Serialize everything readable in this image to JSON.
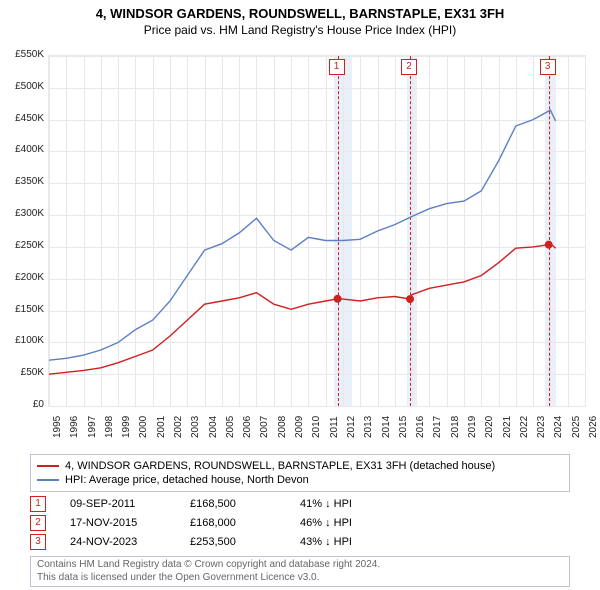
{
  "title": "4, WINDSOR GARDENS, ROUNDSWELL, BARNSTAPLE, EX31 3FH",
  "subtitle": "Price paid vs. HM Land Registry's House Price Index (HPI)",
  "chart": {
    "type": "line",
    "x_min": 1995,
    "x_max": 2026,
    "y_min": 0,
    "y_max": 550000,
    "ytick_step": 50000,
    "yticks": [
      "£0",
      "£50K",
      "£100K",
      "£150K",
      "£200K",
      "£250K",
      "£300K",
      "£350K",
      "£400K",
      "£450K",
      "£500K",
      "£550K"
    ],
    "xticks": [
      1995,
      1996,
      1997,
      1998,
      1999,
      2000,
      2001,
      2002,
      2003,
      2004,
      2005,
      2006,
      2007,
      2008,
      2009,
      2010,
      2011,
      2012,
      2013,
      2014,
      2015,
      2016,
      2017,
      2018,
      2019,
      2020,
      2021,
      2022,
      2023,
      2024,
      2025,
      2026
    ],
    "grid_color": "#e8e8ec",
    "background_color": "#ffffff",
    "shaded_bands": [
      {
        "from": 2011.5,
        "to": 2012.5
      },
      {
        "from": 2015.7,
        "to": 2016.3
      },
      {
        "from": 2023.7,
        "to": 2024.3
      }
    ],
    "series": [
      {
        "name": "price_paid",
        "color": "#d02020",
        "label": "4, WINDSOR GARDENS, ROUNDSWELL, BARNSTAPLE, EX31 3FH (detached house)",
        "points": [
          [
            1995,
            50000
          ],
          [
            1996,
            53000
          ],
          [
            1997,
            56000
          ],
          [
            1998,
            60000
          ],
          [
            1999,
            68000
          ],
          [
            2000,
            78000
          ],
          [
            2001,
            88000
          ],
          [
            2002,
            110000
          ],
          [
            2003,
            135000
          ],
          [
            2004,
            160000
          ],
          [
            2005,
            165000
          ],
          [
            2006,
            170000
          ],
          [
            2007,
            178000
          ],
          [
            2008,
            160000
          ],
          [
            2009,
            152000
          ],
          [
            2010,
            160000
          ],
          [
            2011,
            165000
          ],
          [
            2011.69,
            168500
          ],
          [
            2012,
            168000
          ],
          [
            2013,
            165000
          ],
          [
            2014,
            170000
          ],
          [
            2015,
            172000
          ],
          [
            2015.88,
            168000
          ],
          [
            2016,
            175000
          ],
          [
            2017,
            185000
          ],
          [
            2018,
            190000
          ],
          [
            2019,
            195000
          ],
          [
            2020,
            205000
          ],
          [
            2021,
            225000
          ],
          [
            2022,
            248000
          ],
          [
            2023,
            250000
          ],
          [
            2023.9,
            253500
          ],
          [
            2024,
            255000
          ],
          [
            2024.3,
            248000
          ]
        ]
      },
      {
        "name": "hpi",
        "color": "#5d7fc4",
        "label": "HPI: Average price, detached house, North Devon",
        "points": [
          [
            1995,
            72000
          ],
          [
            1996,
            75000
          ],
          [
            1997,
            80000
          ],
          [
            1998,
            88000
          ],
          [
            1999,
            100000
          ],
          [
            2000,
            120000
          ],
          [
            2001,
            135000
          ],
          [
            2002,
            165000
          ],
          [
            2003,
            205000
          ],
          [
            2004,
            245000
          ],
          [
            2005,
            255000
          ],
          [
            2006,
            272000
          ],
          [
            2007,
            295000
          ],
          [
            2008,
            260000
          ],
          [
            2009,
            245000
          ],
          [
            2010,
            265000
          ],
          [
            2011,
            260000
          ],
          [
            2012,
            260000
          ],
          [
            2013,
            262000
          ],
          [
            2014,
            275000
          ],
          [
            2015,
            285000
          ],
          [
            2016,
            298000
          ],
          [
            2017,
            310000
          ],
          [
            2018,
            318000
          ],
          [
            2019,
            322000
          ],
          [
            2020,
            338000
          ],
          [
            2021,
            385000
          ],
          [
            2022,
            440000
          ],
          [
            2023,
            450000
          ],
          [
            2024,
            465000
          ],
          [
            2024.3,
            448000
          ]
        ]
      }
    ],
    "sale_markers": [
      {
        "n": "1",
        "x": 2011.69,
        "y": 168500
      },
      {
        "n": "2",
        "x": 2015.88,
        "y": 168000
      },
      {
        "n": "3",
        "x": 2023.9,
        "y": 253500
      }
    ]
  },
  "legend": {
    "rows": [
      {
        "color": "#d02020",
        "label": "4, WINDSOR GARDENS, ROUNDSWELL, BARNSTAPLE, EX31 3FH (detached house)"
      },
      {
        "color": "#5d7fc4",
        "label": "HPI: Average price, detached house, North Devon"
      }
    ]
  },
  "sales": [
    {
      "n": "1",
      "date": "09-SEP-2011",
      "price": "£168,500",
      "delta": "41% ↓ HPI"
    },
    {
      "n": "2",
      "date": "17-NOV-2015",
      "price": "£168,000",
      "delta": "46% ↓ HPI"
    },
    {
      "n": "3",
      "date": "24-NOV-2023",
      "price": "£253,500",
      "delta": "43% ↓ HPI"
    }
  ],
  "footer": {
    "line1": "Contains HM Land Registry data © Crown copyright and database right 2024.",
    "line2": "This data is licensed under the Open Government Licence v3.0."
  }
}
